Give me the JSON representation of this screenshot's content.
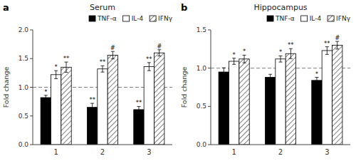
{
  "chart_data": [
    {
      "type": "bar",
      "title": "Serum",
      "panel_label": "a",
      "ylabel": "Fold change",
      "categories": [
        "1",
        "2",
        "3"
      ],
      "series": [
        {
          "name": "TNF-α",
          "color": "black",
          "values": [
            0.82,
            0.65,
            0.61
          ],
          "errors": [
            0.04,
            0.07,
            0.055
          ],
          "annotations": [
            "*",
            "**",
            "**"
          ]
        },
        {
          "name": "IL-4",
          "color": "white",
          "values": [
            1.22,
            1.32,
            1.36
          ],
          "errors": [
            0.07,
            0.055,
            0.07
          ],
          "annotations": [
            "*",
            "**",
            "**"
          ]
        },
        {
          "name": "IFNγ",
          "color": "white",
          "values": [
            1.35,
            1.56,
            1.6
          ],
          "errors": [
            0.09,
            0.065,
            0.055
          ],
          "annotations": [
            "**",
            "#",
            "#"
          ]
        }
      ],
      "ylim": [
        0.0,
        2.0
      ],
      "yticks": [
        {
          "value": 0.0,
          "label": "0.0"
        },
        0.5,
        {
          "value": 1.0,
          "label": "1.0"
        },
        1.5,
        {
          "value": 2.0,
          "label": "2.0"
        }
      ],
      "reference_line": 1.0,
      "legend": "upper right",
      "grid": false
    },
    {
      "type": "bar",
      "title": "Hippocampus",
      "panel_label": "b",
      "ylabel": "Fold change",
      "categories": [
        "1",
        "2",
        "3"
      ],
      "series": [
        {
          "name": "TNF-α",
          "color": "black",
          "values": [
            0.95,
            0.88,
            0.84
          ],
          "errors": [
            0.055,
            0.04,
            0.04
          ],
          "annotations": [
            null,
            null,
            "*"
          ]
        },
        {
          "name": "IL-4",
          "color": "white",
          "values": [
            1.09,
            1.12,
            1.23
          ],
          "errors": [
            0.04,
            0.04,
            0.05
          ],
          "annotations": [
            "*",
            "*",
            "**"
          ]
        },
        {
          "name": "IFNγ",
          "color": "white",
          "values": [
            1.12,
            1.19,
            1.3
          ],
          "errors": [
            0.05,
            0.065,
            0.05
          ],
          "annotations": [
            "*",
            "**",
            "#"
          ]
        }
      ],
      "ylim": [
        0.0,
        1.5
      ],
      "yticks": [
        {
          "value": 0.0,
          "label": "0.0"
        },
        0.5,
        {
          "value": 1.0,
          "label": "1.0"
        },
        1.5
      ],
      "reference_line": 1.0,
      "legend": "upper right",
      "grid": false
    }
  ]
}
